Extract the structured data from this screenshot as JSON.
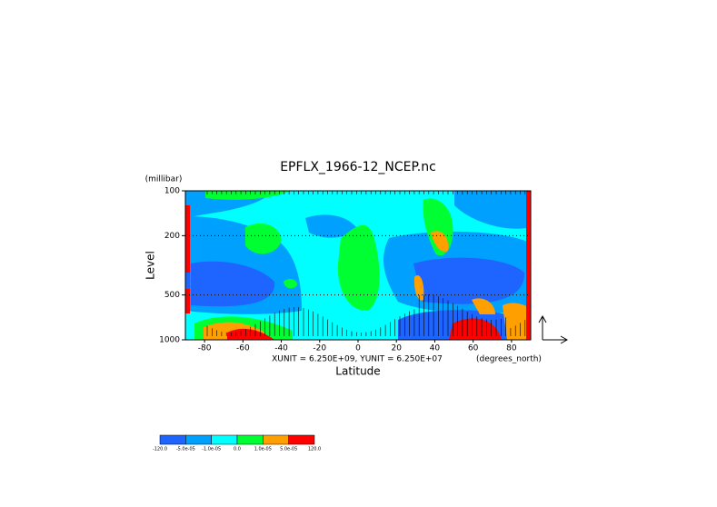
{
  "chart_data": {
    "type": "contour",
    "title": "EPFLX_1966-12_NCEP.nc",
    "y_unit_label": "(millibar)",
    "ylabel": "Level",
    "xlabel": "Latitude",
    "vector_note": "XUNIT = 6.250E+09, YUNIT = 6.250E+07",
    "x_unit_label": "(degrees_north)",
    "xlim": [
      -90,
      90
    ],
    "xticks": [
      -80,
      -60,
      -40,
      -20,
      0,
      20,
      40,
      60,
      80
    ],
    "ylim": [
      1000,
      100
    ],
    "yticks": [
      100,
      200,
      500,
      1000
    ],
    "ylog": true,
    "grid": true,
    "colorbar": {
      "levels": [
        {
          "value": -120,
          "label": "-120.0"
        },
        {
          "value": -5e-05,
          "label": "-5.0e-05"
        },
        {
          "value": -1e-05,
          "label": "-1.0e-05"
        },
        {
          "value": 0,
          "label": "0.0"
        },
        {
          "value": 1e-05,
          "label": "1.0e-05"
        },
        {
          "value": 5e-05,
          "label": "5.0e-05"
        },
        {
          "value": 120,
          "label": "120.0"
        }
      ],
      "colors": [
        "#1e64ff",
        "#00a0ff",
        "#00ffff",
        "#00ff32",
        "#ffa000",
        "#ff0000"
      ]
    }
  }
}
